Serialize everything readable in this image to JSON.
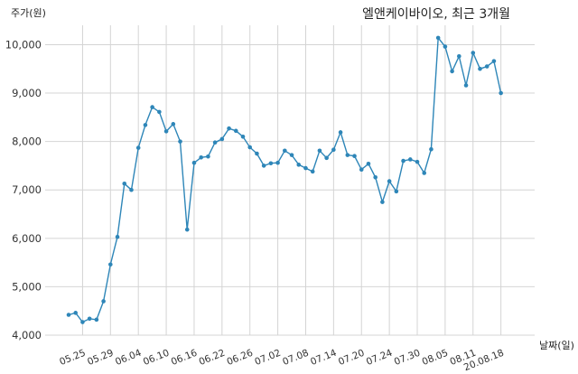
{
  "chart_data": {
    "type": "line",
    "title": "엘앤케이바이오, 최근 3개월",
    "ylabel": "주가(원)",
    "xlabel": "날짜(일)",
    "ylim": [
      4000,
      10400
    ],
    "yticks": [
      4000,
      5000,
      6000,
      7000,
      8000,
      9000,
      10000
    ],
    "ytick_labels": [
      "4,000",
      "5,000",
      "6,000",
      "7,000",
      "8,000",
      "9,000",
      "10,000"
    ],
    "xtick_labels": [
      "05.25",
      "05.29",
      "06.04",
      "06.10",
      "06.16",
      "06.22",
      "06.26",
      "07.02",
      "07.08",
      "07.14",
      "07.20",
      "07.24",
      "07.30",
      "08.05",
      "08.11",
      "20.08.18"
    ],
    "xtick_index": [
      2,
      6,
      10,
      14,
      18,
      22,
      26,
      30,
      34,
      38,
      42,
      46,
      50,
      54,
      58,
      62
    ],
    "grid": true,
    "color": "#2e86b8",
    "series": [
      {
        "values": [
          4420,
          4460,
          4270,
          4340,
          4320,
          4700,
          5460,
          6030,
          7130,
          7000,
          7870,
          8340,
          8710,
          8610,
          8210,
          8360,
          8000,
          6180,
          7560,
          7670,
          7690,
          7980,
          8050,
          8270,
          8220,
          8100,
          7880,
          7750,
          7500,
          7550,
          7560,
          7810,
          7720,
          7520,
          7450,
          7380,
          7810,
          7660,
          7830,
          8190,
          7720,
          7700,
          7420,
          7540,
          7260,
          6750,
          7180,
          6970,
          7600,
          7630,
          7580,
          7350,
          7840,
          10140,
          9960,
          9450,
          9760,
          9160,
          9830,
          9500,
          9550,
          9660,
          9000
        ]
      }
    ]
  }
}
